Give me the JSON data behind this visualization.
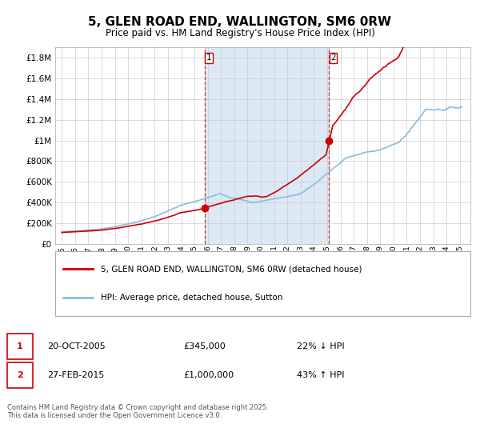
{
  "title": "5, GLEN ROAD END, WALLINGTON, SM6 0RW",
  "subtitle": "Price paid vs. HM Land Registry's House Price Index (HPI)",
  "background_color": "#ffffff",
  "plot_bg_color": "#ffffff",
  "shaded_region_color": "#dce9f5",
  "grid_color": "#cccccc",
  "hpi_line_color": "#89bcde",
  "price_line_color": "#cc0000",
  "sale1_date_num": 2005.8,
  "sale1_date_label": "20-OCT-2005",
  "sale1_price": 345000,
  "sale1_hpi_diff": "22% ↓ HPI",
  "sale2_date_num": 2015.15,
  "sale2_date_label": "27-FEB-2015",
  "sale2_price": 1000000,
  "sale2_hpi_diff": "43% ↑ HPI",
  "legend_label1": "5, GLEN ROAD END, WALLINGTON, SM6 0RW (detached house)",
  "legend_label2": "HPI: Average price, detached house, Sutton",
  "footnote": "Contains HM Land Registry data © Crown copyright and database right 2025.\nThis data is licensed under the Open Government Licence v3.0.",
  "ylim": [
    0,
    1900000
  ],
  "xlim_start": 1994.5,
  "xlim_end": 2025.8
}
